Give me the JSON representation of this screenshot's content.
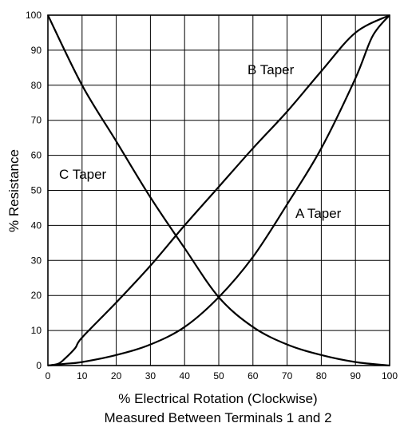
{
  "chart_data": {
    "type": "line",
    "title": "",
    "xlabel": "% Electrical Rotation (Clockwise)",
    "xlabel_line2": "Measured Between Terminals 1 and 2",
    "ylabel": "% Resistance",
    "xlim": [
      0,
      100
    ],
    "ylim": [
      0,
      100
    ],
    "xticks": [
      "0",
      "10",
      "20",
      "30",
      "40",
      "50",
      "60",
      "70",
      "80",
      "90",
      "100"
    ],
    "yticks": [
      "0",
      "10",
      "20",
      "30",
      "40",
      "50",
      "60",
      "70",
      "80",
      "90",
      "100"
    ],
    "grid": true,
    "series": [
      {
        "name": "A Taper",
        "x": [
          0,
          5,
          10,
          20,
          30,
          40,
          50,
          60,
          70,
          80,
          90,
          95,
          100
        ],
        "y": [
          0,
          0.5,
          1,
          3,
          6,
          11,
          19.5,
          31,
          46,
          62,
          82,
          94,
          100
        ]
      },
      {
        "name": "B Taper",
        "x": [
          0,
          3,
          5,
          8,
          10,
          20,
          30,
          40,
          50,
          60,
          70,
          80,
          90,
          100
        ],
        "y": [
          0,
          0.5,
          2,
          5,
          8,
          18,
          28.5,
          40,
          51,
          62,
          72.5,
          84,
          95,
          100
        ]
      },
      {
        "name": "C Taper",
        "x": [
          0,
          10,
          20,
          30,
          40,
          50,
          60,
          70,
          80,
          90,
          100
        ],
        "y": [
          100,
          80,
          64,
          48,
          33.5,
          19.5,
          11,
          6,
          3,
          1,
          0
        ]
      }
    ]
  }
}
